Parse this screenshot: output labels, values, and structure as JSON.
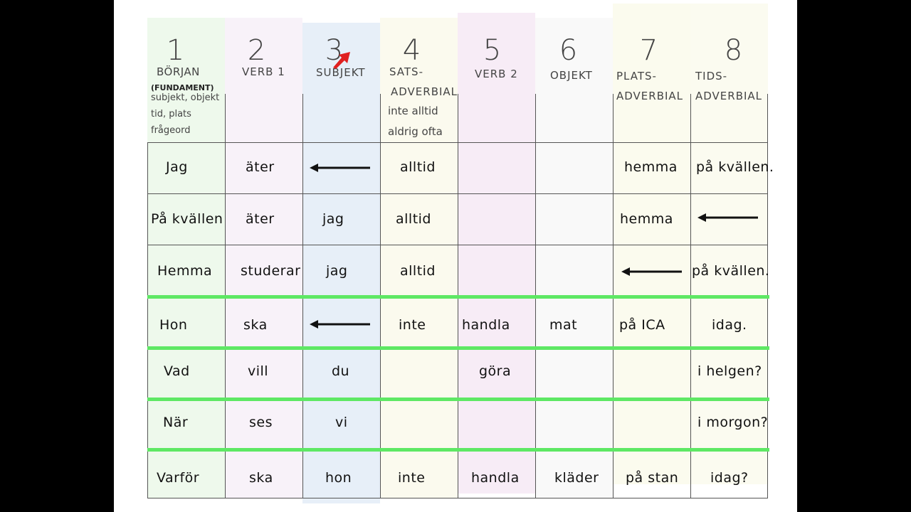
{
  "columns": [
    {
      "number": "1",
      "label": "BÖRJAN",
      "sublabel": "(FUNDAMENT)",
      "notes": [
        "subjekt, objekt",
        "tid, plats",
        "frågeord"
      ]
    },
    {
      "number": "2",
      "label": "VERB 1"
    },
    {
      "number": "3",
      "label": "SUBJEKT"
    },
    {
      "number": "4",
      "label": "SATS-",
      "label2": "ADVERBIAL",
      "notes": [
        "inte alltid",
        "aldrig ofta"
      ]
    },
    {
      "number": "5",
      "label": "VERB 2"
    },
    {
      "number": "6",
      "label": "OBJEKT"
    },
    {
      "number": "7",
      "label": "PLATS-",
      "label2": "ADVERBIAL"
    },
    {
      "number": "8",
      "label": "TIDS-",
      "label2": "ADVERBIAL"
    }
  ],
  "rows": [
    [
      "Jag",
      "äter",
      "←",
      "alltid",
      "",
      "",
      "hemma",
      "på kvällen."
    ],
    [
      "På kvällen",
      "äter",
      "jag",
      "alltid",
      "",
      "",
      "hemma",
      "←"
    ],
    [
      "Hemma",
      "studerar",
      "jag",
      "alltid",
      "",
      "",
      "←",
      "på kvällen."
    ],
    [
      "Hon",
      "ska",
      "←",
      "inte",
      "handla",
      "mat",
      "på ICA",
      "idag."
    ],
    [
      "Vad",
      "vill",
      "du",
      "",
      "göra",
      "",
      "",
      "i helgen?"
    ],
    [
      "När",
      "ses",
      "vi",
      "",
      "",
      "",
      "",
      "i morgon?"
    ],
    [
      "Varför",
      "ska",
      "hon",
      "inte",
      "handla",
      "kläder",
      "på stan",
      "idag?"
    ]
  ],
  "colors": {
    "col1": "#eef9ec",
    "col2": "#f8f2f9",
    "col3": "#e7eff8",
    "col4": "#fbfaee",
    "col5": "#f7ecf6",
    "col6": "#f9f9f9",
    "col7": "#fbfbee",
    "col8": "#fbfbf0",
    "separator": "#5ee864",
    "arrow": "#111111",
    "cursor": "#e02020"
  },
  "icons": {
    "arrow": "left-arrow-icon",
    "cursor": "mouse-pointer-icon"
  }
}
